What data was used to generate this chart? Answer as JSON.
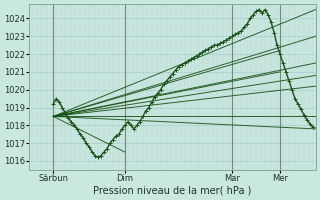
{
  "xlabel": "Pression niveau de la mer( hPa )",
  "xlim": [
    0,
    96
  ],
  "ylim": [
    1015.5,
    1024.8
  ],
  "yticks": [
    1016,
    1017,
    1018,
    1019,
    1020,
    1021,
    1022,
    1023,
    1024
  ],
  "xtick_positions": [
    8,
    32,
    68,
    84
  ],
  "xtick_labels": [
    "Sârbun",
    "Dim",
    "Mar",
    "Mer"
  ],
  "day_lines": [
    8,
    32,
    68,
    84
  ],
  "bg_color": "#c8e8e0",
  "grid_v_color": "#b8d8cc",
  "grid_v_pink": "#ccbbbb",
  "line_color": "#1a5218",
  "ensemble_lines": [
    {
      "x": [
        8,
        96
      ],
      "y": [
        1018.5,
        1024.5
      ]
    },
    {
      "x": [
        8,
        96
      ],
      "y": [
        1018.5,
        1023.0
      ]
    },
    {
      "x": [
        8,
        96
      ],
      "y": [
        1018.5,
        1021.5
      ]
    },
    {
      "x": [
        8,
        96
      ],
      "y": [
        1018.5,
        1020.8
      ]
    },
    {
      "x": [
        8,
        96
      ],
      "y": [
        1018.5,
        1020.2
      ]
    },
    {
      "x": [
        8,
        96
      ],
      "y": [
        1018.5,
        1018.5
      ]
    },
    {
      "x": [
        8,
        96
      ],
      "y": [
        1018.5,
        1017.8
      ]
    },
    {
      "x": [
        8,
        84
      ],
      "y": [
        1018.5,
        1022.2
      ]
    },
    {
      "x": [
        8,
        84
      ],
      "y": [
        1018.5,
        1021.0
      ]
    },
    {
      "x": [
        8,
        32
      ],
      "y": [
        1018.5,
        1016.5
      ]
    }
  ],
  "main_line": {
    "x": [
      8,
      9,
      10,
      11,
      12,
      13,
      14,
      15,
      16,
      17,
      18,
      19,
      20,
      21,
      22,
      23,
      24,
      25,
      26,
      27,
      28,
      29,
      30,
      31,
      32,
      33,
      34,
      35,
      36,
      37,
      38,
      39,
      40,
      41,
      42,
      43,
      44,
      45,
      46,
      47,
      48,
      49,
      50,
      51,
      52,
      53,
      54,
      55,
      56,
      57,
      58,
      59,
      60,
      61,
      62,
      63,
      64,
      65,
      66,
      67,
      68,
      69,
      70,
      71,
      72,
      73,
      74,
      75,
      76,
      77,
      78,
      79,
      80,
      81,
      82,
      83,
      84,
      85,
      86,
      87,
      88,
      89,
      90,
      91,
      92,
      93,
      94,
      95
    ],
    "y": [
      1019.2,
      1019.5,
      1019.3,
      1019.0,
      1018.7,
      1018.4,
      1018.2,
      1018.0,
      1017.8,
      1017.5,
      1017.3,
      1017.0,
      1016.8,
      1016.5,
      1016.3,
      1016.2,
      1016.3,
      1016.5,
      1016.7,
      1017.0,
      1017.2,
      1017.4,
      1017.5,
      1017.8,
      1018.0,
      1018.2,
      1018.0,
      1017.8,
      1018.0,
      1018.2,
      1018.5,
      1018.8,
      1019.0,
      1019.3,
      1019.6,
      1019.8,
      1020.0,
      1020.3,
      1020.5,
      1020.7,
      1020.9,
      1021.1,
      1021.3,
      1021.4,
      1021.5,
      1021.6,
      1021.7,
      1021.8,
      1021.9,
      1022.0,
      1022.1,
      1022.2,
      1022.3,
      1022.4,
      1022.5,
      1022.5,
      1022.6,
      1022.7,
      1022.8,
      1022.9,
      1023.0,
      1023.1,
      1023.2,
      1023.3,
      1023.5,
      1023.7,
      1024.0,
      1024.2,
      1024.4,
      1024.5,
      1024.3,
      1024.5,
      1024.2,
      1023.8,
      1023.2,
      1022.5,
      1022.0,
      1021.5,
      1021.0,
      1020.5,
      1020.0,
      1019.5,
      1019.2,
      1018.9,
      1018.6,
      1018.3,
      1018.1,
      1017.9
    ]
  }
}
